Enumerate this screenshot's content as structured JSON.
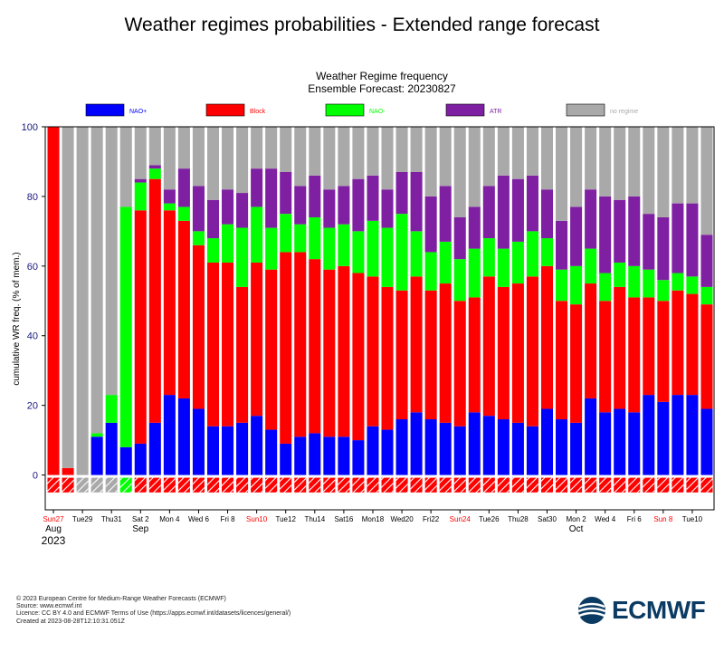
{
  "page_title": "Weather regimes probabilities - Extended range forecast",
  "chart_data": {
    "type": "bar",
    "stacked": true,
    "title": "Weather Regime frequency",
    "subtitle": "Ensemble Forecast: 20230827",
    "ylabel": "cumulative WR freq. (% of mem.)",
    "ylim": [
      -10,
      100
    ],
    "yticks": [
      0,
      20,
      40,
      60,
      80,
      100
    ],
    "legend_position": "top",
    "series": [
      {
        "name": "NAO+",
        "color": "#0000ff"
      },
      {
        "name": "Block",
        "color": "#ff0000"
      },
      {
        "name": "NAO-",
        "color": "#00ff00"
      },
      {
        "name": "ATR",
        "color": "#7f1fa2"
      },
      {
        "name": "no regime",
        "color": "#a9a9a9"
      }
    ],
    "cumulative": [
      [
        0,
        100,
        100,
        100
      ],
      [
        0,
        2,
        2,
        2
      ],
      [
        0,
        0,
        0,
        0
      ],
      [
        11,
        11,
        12,
        12
      ],
      [
        15,
        15,
        23,
        23
      ],
      [
        8,
        8,
        77,
        77
      ],
      [
        9,
        76,
        84,
        85
      ],
      [
        15,
        85,
        88,
        89
      ],
      [
        23,
        76,
        78,
        82
      ],
      [
        22,
        73,
        77,
        88
      ],
      [
        19,
        66,
        70,
        83
      ],
      [
        14,
        61,
        68,
        79
      ],
      [
        14,
        61,
        72,
        82
      ],
      [
        15,
        54,
        71,
        81
      ],
      [
        17,
        61,
        77,
        88
      ],
      [
        13,
        59,
        71,
        88
      ],
      [
        9,
        64,
        75,
        87
      ],
      [
        11,
        64,
        72,
        83
      ],
      [
        12,
        62,
        74,
        86
      ],
      [
        11,
        59,
        71,
        82
      ],
      [
        11,
        60,
        72,
        83
      ],
      [
        10,
        58,
        70,
        85
      ],
      [
        14,
        57,
        73,
        86
      ],
      [
        13,
        54,
        71,
        82
      ],
      [
        16,
        53,
        75,
        87
      ],
      [
        18,
        57,
        70,
        87
      ],
      [
        16,
        53,
        64,
        80
      ],
      [
        15,
        55,
        67,
        83
      ],
      [
        14,
        50,
        62,
        74
      ],
      [
        18,
        51,
        65,
        77
      ],
      [
        17,
        57,
        68,
        83
      ],
      [
        16,
        54,
        65,
        86
      ],
      [
        15,
        55,
        67,
        85
      ],
      [
        14,
        57,
        70,
        86
      ],
      [
        19,
        60,
        68,
        82
      ],
      [
        16,
        50,
        59,
        73
      ],
      [
        15,
        49,
        60,
        77
      ],
      [
        22,
        55,
        65,
        82
      ],
      [
        18,
        50,
        58,
        80
      ],
      [
        19,
        54,
        61,
        79
      ],
      [
        18,
        51,
        60,
        80
      ],
      [
        23,
        51,
        59,
        75
      ],
      [
        21,
        50,
        56,
        74
      ],
      [
        23,
        53,
        58,
        78
      ],
      [
        23,
        52,
        57,
        78
      ],
      [
        19,
        49,
        54,
        69
      ]
    ],
    "xtick_labels": [
      {
        "bar": 0,
        "text": "Sun27",
        "color": "#ff0000"
      },
      {
        "bar": 2,
        "text": "Tue29",
        "color": "#000000"
      },
      {
        "bar": 4,
        "text": "Thu31",
        "color": "#000000"
      },
      {
        "bar": 6,
        "text": "Sat 2",
        "color": "#000000"
      },
      {
        "bar": 8,
        "text": "Mon 4",
        "color": "#000000"
      },
      {
        "bar": 10,
        "text": "Wed 6",
        "color": "#000000"
      },
      {
        "bar": 12,
        "text": "Fri 8",
        "color": "#000000"
      },
      {
        "bar": 14,
        "text": "Sun10",
        "color": "#ff0000"
      },
      {
        "bar": 16,
        "text": "Tue12",
        "color": "#000000"
      },
      {
        "bar": 18,
        "text": "Thu14",
        "color": "#000000"
      },
      {
        "bar": 20,
        "text": "Sat16",
        "color": "#000000"
      },
      {
        "bar": 22,
        "text": "Mon18",
        "color": "#000000"
      },
      {
        "bar": 24,
        "text": "Wed20",
        "color": "#000000"
      },
      {
        "bar": 26,
        "text": "Fri22",
        "color": "#000000"
      },
      {
        "bar": 28,
        "text": "Sun24",
        "color": "#ff0000"
      },
      {
        "bar": 30,
        "text": "Tue26",
        "color": "#000000"
      },
      {
        "bar": 32,
        "text": "Thu28",
        "color": "#000000"
      },
      {
        "bar": 34,
        "text": "Sat30",
        "color": "#000000"
      },
      {
        "bar": 36,
        "text": "Mon 2",
        "color": "#000000"
      },
      {
        "bar": 38,
        "text": "Wed 4",
        "color": "#000000"
      },
      {
        "bar": 40,
        "text": "Fri 6",
        "color": "#000000"
      },
      {
        "bar": 42,
        "text": "Sun 8",
        "color": "#ff0000"
      },
      {
        "bar": 44,
        "text": "Tue10",
        "color": "#000000"
      }
    ],
    "month_labels": [
      {
        "bar": 0,
        "text": "Aug"
      },
      {
        "bar": 6,
        "text": "Sep"
      },
      {
        "bar": 36,
        "text": "Oct"
      }
    ],
    "year_label": "2023",
    "year_label_bar": 0,
    "strip_colors": [
      "#ff0000",
      "#ff0000",
      "#a9a9a9",
      "#a9a9a9",
      "#a9a9a9",
      "#00ff00",
      "#ff0000",
      "#ff0000",
      "#ff0000",
      "#ff0000",
      "#ff0000",
      "#ff0000",
      "#ff0000",
      "#ff0000",
      "#ff0000",
      "#ff0000",
      "#ff0000",
      "#ff0000",
      "#ff0000",
      "#ff0000",
      "#ff0000",
      "#ff0000",
      "#ff0000",
      "#ff0000",
      "#ff0000",
      "#ff0000",
      "#ff0000",
      "#ff0000",
      "#ff0000",
      "#ff0000",
      "#ff0000",
      "#ff0000",
      "#ff0000",
      "#ff0000",
      "#ff0000",
      "#ff0000",
      "#ff0000",
      "#ff0000",
      "#ff0000",
      "#ff0000",
      "#ff0000",
      "#ff0000",
      "#ff0000",
      "#ff0000",
      "#ff0000",
      "#ff0000"
    ]
  },
  "footer": {
    "line1": "© 2023 European Centre for Medium-Range Weather Forecasts (ECMWF)",
    "line2": "Source: www.ecmwf.int",
    "line3": "Licence: CC BY 4.0 and ECMWF Terms of Use (https://apps.ecmwf.int/datasets/licences/general/)",
    "line4": "Created at 2023-08-28T12:10:31.051Z"
  },
  "logo_text": "ECMWF",
  "colors": {
    "logo": "#0b3b63",
    "axis_text": "#1a1a80"
  }
}
